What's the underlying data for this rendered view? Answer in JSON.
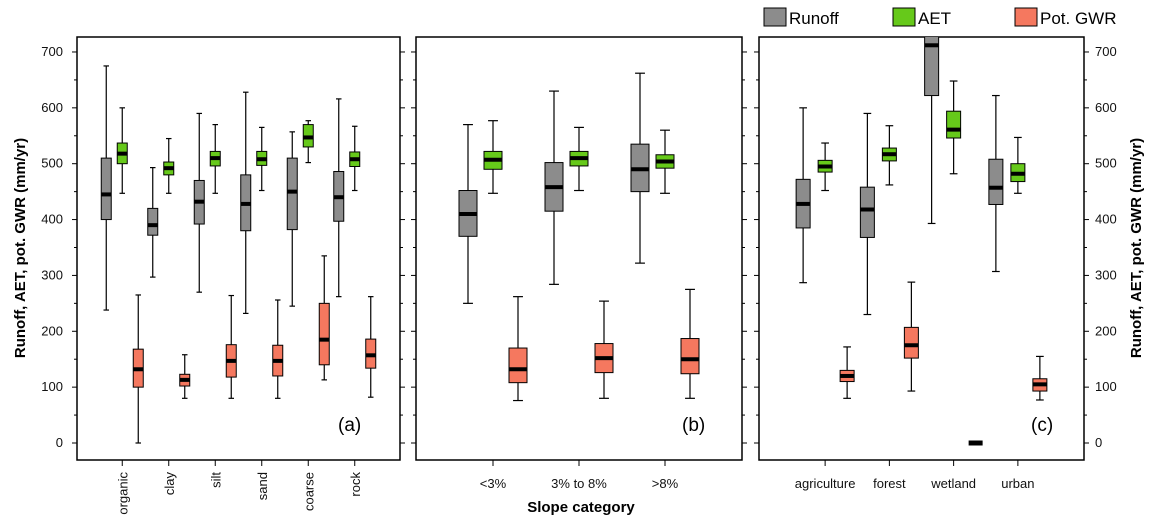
{
  "chart_data": {
    "type": "boxplot",
    "ylabel_left": "Runoff, AET, pot. GWR (mm/yr)",
    "ylabel_right": "Runoff, AET, pot. GWR (mm/yr)",
    "xlabel": "Slope category",
    "ylim": [
      -40,
      740
    ],
    "yticks": [
      0,
      100,
      200,
      300,
      400,
      500,
      600,
      700
    ],
    "grid": false,
    "legend_position": "top-right",
    "series": [
      {
        "name": "Runoff",
        "color": "#8c8c8c"
      },
      {
        "name": "AET",
        "color": "#66c91a"
      },
      {
        "name": "Pot. GWR",
        "color": "#f5785f"
      }
    ],
    "panels": [
      {
        "label": "(a)",
        "categories": [
          "organic",
          "clay",
          "silt",
          "sand",
          "coarse",
          "rock"
        ],
        "x_labels_rotated": true,
        "boxes": {
          "Runoff": [
            {
              "min": 238,
              "q1": 400,
              "median": 445,
              "q3": 510,
              "max": 675
            },
            {
              "min": 297,
              "q1": 372,
              "median": 390,
              "q3": 420,
              "max": 493
            },
            {
              "min": 270,
              "q1": 392,
              "median": 432,
              "q3": 470,
              "max": 590
            },
            {
              "min": 232,
              "q1": 380,
              "median": 428,
              "q3": 480,
              "max": 628
            },
            {
              "min": 245,
              "q1": 382,
              "median": 450,
              "q3": 510,
              "max": 557
            },
            {
              "min": 262,
              "q1": 397,
              "median": 440,
              "q3": 486,
              "max": 616
            }
          ],
          "AET": [
            {
              "min": 447,
              "q1": 500,
              "median": 518,
              "q3": 537,
              "max": 600
            },
            {
              "min": 447,
              "q1": 480,
              "median": 492,
              "q3": 503,
              "max": 545
            },
            {
              "min": 447,
              "q1": 496,
              "median": 510,
              "q3": 522,
              "max": 570
            },
            {
              "min": 452,
              "q1": 497,
              "median": 508,
              "q3": 522,
              "max": 565
            },
            {
              "min": 502,
              "q1": 530,
              "median": 547,
              "q3": 570,
              "max": 577
            },
            {
              "min": 452,
              "q1": 495,
              "median": 508,
              "q3": 521,
              "max": 567
            }
          ],
          "Pot. GWR": [
            {
              "min": 0,
              "q1": 100,
              "median": 132,
              "q3": 168,
              "max": 265
            },
            {
              "min": 80,
              "q1": 102,
              "median": 113,
              "q3": 123,
              "max": 158
            },
            {
              "min": 80,
              "q1": 118,
              "median": 147,
              "q3": 176,
              "max": 264
            },
            {
              "min": 80,
              "q1": 120,
              "median": 147,
              "q3": 175,
              "max": 256
            },
            {
              "min": 113,
              "q1": 140,
              "median": 185,
              "q3": 250,
              "max": 335
            },
            {
              "min": 82,
              "q1": 134,
              "median": 157,
              "q3": 186,
              "max": 262
            }
          ]
        }
      },
      {
        "label": "(b)",
        "categories": [
          "<3%",
          "3% to 8%",
          ">8%"
        ],
        "x_labels_rotated": false,
        "boxes": {
          "Runoff": [
            {
              "min": 250,
              "q1": 370,
              "median": 410,
              "q3": 452,
              "max": 570
            },
            {
              "min": 284,
              "q1": 415,
              "median": 458,
              "q3": 502,
              "max": 630
            },
            {
              "min": 322,
              "q1": 450,
              "median": 490,
              "q3": 535,
              "max": 662
            }
          ],
          "AET": [
            {
              "min": 447,
              "q1": 490,
              "median": 507,
              "q3": 522,
              "max": 577
            },
            {
              "min": 452,
              "q1": 496,
              "median": 510,
              "q3": 522,
              "max": 565
            },
            {
              "min": 447,
              "q1": 492,
              "median": 504,
              "q3": 516,
              "max": 560
            }
          ],
          "Pot. GWR": [
            {
              "min": 76,
              "q1": 108,
              "median": 132,
              "q3": 170,
              "max": 262
            },
            {
              "min": 80,
              "q1": 126,
              "median": 152,
              "q3": 178,
              "max": 254
            },
            {
              "min": 80,
              "q1": 124,
              "median": 150,
              "q3": 187,
              "max": 275
            }
          ]
        }
      },
      {
        "label": "(c)",
        "categories": [
          "agriculture",
          "forest",
          "wetland",
          "urban"
        ],
        "x_labels_rotated": false,
        "boxes": {
          "Runoff": [
            {
              "min": 287,
              "q1": 385,
              "median": 428,
              "q3": 472,
              "max": 600
            },
            {
              "min": 230,
              "q1": 368,
              "median": 418,
              "q3": 458,
              "max": 590
            },
            {
              "min": 393,
              "q1": 622,
              "median": 712,
              "q3": 745,
              "max": 745
            },
            {
              "min": 307,
              "q1": 427,
              "median": 457,
              "q3": 508,
              "max": 622
            }
          ],
          "AET": [
            {
              "min": 452,
              "q1": 485,
              "median": 495,
              "q3": 506,
              "max": 537
            },
            {
              "min": 462,
              "q1": 505,
              "median": 517,
              "q3": 528,
              "max": 568
            },
            {
              "min": 482,
              "q1": 546,
              "median": 561,
              "q3": 594,
              "max": 648
            },
            {
              "min": 447,
              "q1": 468,
              "median": 482,
              "q3": 500,
              "max": 547
            }
          ],
          "Pot. GWR": [
            {
              "min": 80,
              "q1": 110,
              "median": 120,
              "q3": 130,
              "max": 172
            },
            {
              "min": 93,
              "q1": 152,
              "median": 175,
              "q3": 207,
              "max": 288
            },
            {
              "min": 0,
              "q1": 0,
              "median": 0,
              "q3": 0,
              "max": 0
            },
            {
              "min": 77,
              "q1": 93,
              "median": 105,
              "q3": 115,
              "max": 155
            }
          ]
        }
      }
    ]
  }
}
